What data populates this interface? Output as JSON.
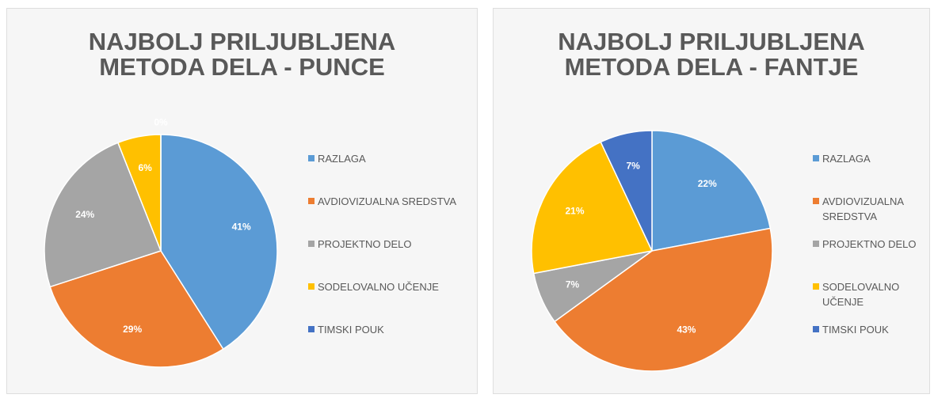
{
  "chart_data": [
    {
      "type": "pie",
      "title": "NAJBOLJ PRILJUBLJENA METODA DELA - PUNCE",
      "categories": [
        "RAZLAGA",
        "AVDIOVIZUALNA SREDSTVA",
        "PROJEKTNO DELO",
        "SODELOVALNO UČENJE",
        "TIMSKI POUK"
      ],
      "values": [
        41,
        29,
        24,
        6,
        0
      ],
      "value_labels": [
        "41%",
        "29%",
        "24%",
        "6%",
        "0%"
      ],
      "colors": [
        "#5b9bd5",
        "#ed7d31",
        "#a5a5a5",
        "#ffc000",
        "#4472c4"
      ],
      "legend": "right"
    },
    {
      "type": "pie",
      "title": "NAJBOLJ PRILJUBLJENA METODA DELA - FANTJE",
      "categories": [
        "RAZLAGA",
        "AVDIOVIZUALNA SREDSTVA",
        "PROJEKTNO DELO",
        "SODELOVALNO UČENJE",
        "TIMSKI POUK"
      ],
      "values": [
        22,
        43,
        7,
        21,
        7
      ],
      "value_labels": [
        "22%",
        "43%",
        "7%",
        "21%",
        "7%"
      ],
      "colors": [
        "#5b9bd5",
        "#ed7d31",
        "#a5a5a5",
        "#ffc000",
        "#4472c4"
      ],
      "legend": "right"
    }
  ]
}
